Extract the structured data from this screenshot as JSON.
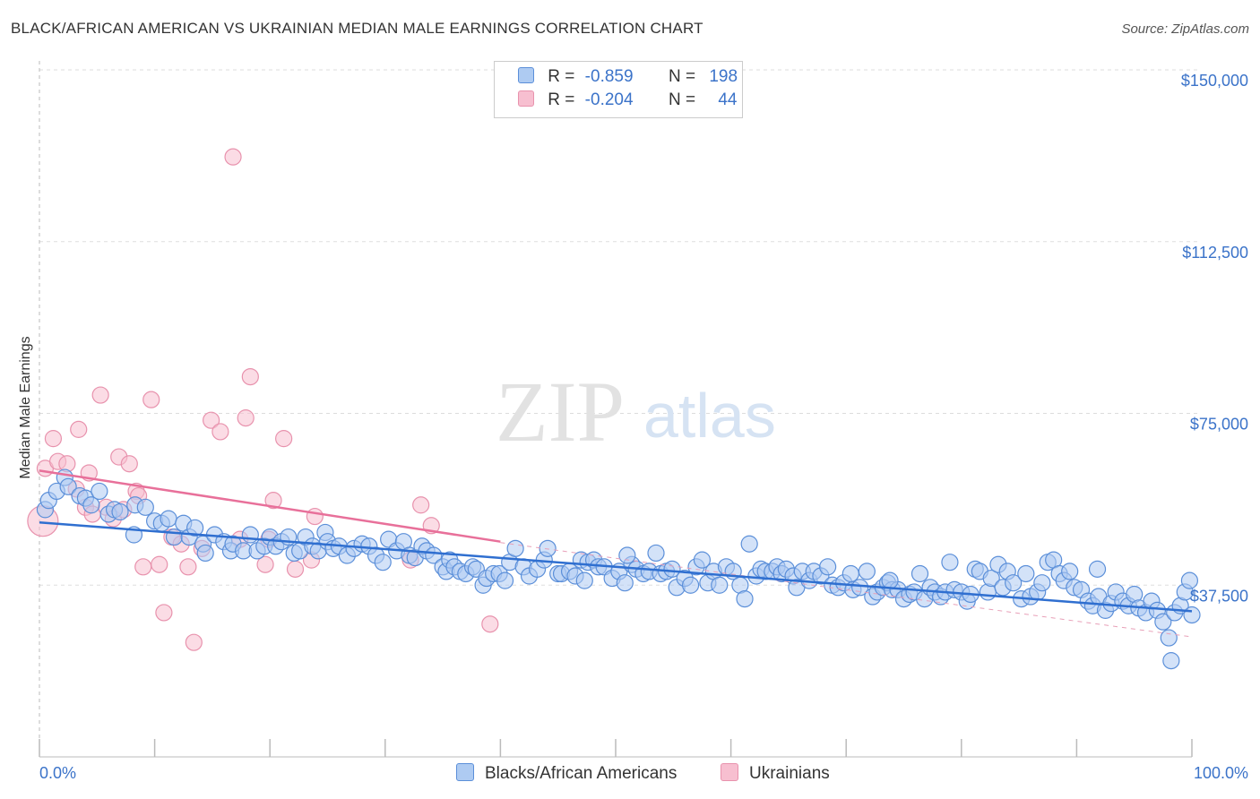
{
  "header": {
    "title": "BLACK/AFRICAN AMERICAN VS UKRAINIAN MEDIAN MALE EARNINGS CORRELATION CHART",
    "source": "Source: ZipAtlas.com"
  },
  "watermark": {
    "zip": "ZIP",
    "atlas": "atlas"
  },
  "legend": {
    "rows": [
      {
        "r_label": "R =",
        "r_value": "-0.859",
        "n_label": "N =",
        "n_value": "198"
      },
      {
        "r_label": "R =",
        "r_value": "-0.204",
        "n_label": "N =",
        "n_value": "44"
      }
    ]
  },
  "colors": {
    "blue_fill": "#aecbf2",
    "blue_stroke": "#5b8fd9",
    "blue_line": "#2f6fd0",
    "pink_fill": "#f7bfd0",
    "pink_stroke": "#e892ad",
    "pink_line": "#e8709a",
    "tick_color": "#3b73c9",
    "grid": "#dddddd"
  },
  "chart_data": {
    "type": "scatter",
    "title": "BLACK/AFRICAN AMERICAN VS UKRAINIAN MEDIAN MALE EARNINGS CORRELATION CHART",
    "xlabel": "",
    "ylabel": "Median Male Earnings",
    "xlim": [
      0,
      100
    ],
    "ylim": [
      0,
      155000
    ],
    "x_tick_labels": [
      "0.0%",
      "100.0%"
    ],
    "y_ticks": [
      37500,
      75000,
      112500,
      150000
    ],
    "y_tick_labels": [
      "$37,500",
      "$75,000",
      "$112,500",
      "$150,000"
    ],
    "grid": true,
    "legend_position": "top-center",
    "series": [
      {
        "name": "Blacks/African Americans",
        "r": -0.859,
        "n": 198,
        "trend": {
          "x": [
            0,
            100
          ],
          "y": [
            51200,
            31800
          ]
        },
        "trend_extension": {
          "x": [
            40,
            100
          ],
          "y": [
            46800,
            26200
          ]
        },
        "points": [
          [
            0.5,
            54000
          ],
          [
            0.8,
            56000
          ],
          [
            1.5,
            58000
          ],
          [
            2.2,
            61000
          ],
          [
            2.5,
            59000
          ],
          [
            3.5,
            57000
          ],
          [
            4.0,
            56500
          ],
          [
            4.5,
            55000
          ],
          [
            5.2,
            58000
          ],
          [
            6.0,
            53000
          ],
          [
            6.5,
            54000
          ],
          [
            7.0,
            53500
          ],
          [
            8.2,
            48500
          ],
          [
            8.3,
            55000
          ],
          [
            9.2,
            54500
          ],
          [
            10.0,
            51500
          ],
          [
            10.6,
            51000
          ],
          [
            11.2,
            52000
          ],
          [
            11.7,
            48000
          ],
          [
            12.5,
            51000
          ],
          [
            13.0,
            48000
          ],
          [
            13.5,
            50000
          ],
          [
            14.2,
            46500
          ],
          [
            14.4,
            44500
          ],
          [
            15.2,
            48500
          ],
          [
            16.0,
            47000
          ],
          [
            16.6,
            45000
          ],
          [
            16.8,
            46500
          ],
          [
            17.7,
            45000
          ],
          [
            18.3,
            48500
          ],
          [
            18.9,
            45000
          ],
          [
            19.5,
            46000
          ],
          [
            20.0,
            48000
          ],
          [
            20.5,
            46000
          ],
          [
            21.0,
            47000
          ],
          [
            21.6,
            48000
          ],
          [
            22.1,
            44500
          ],
          [
            22.6,
            45000
          ],
          [
            23.1,
            48000
          ],
          [
            23.7,
            46000
          ],
          [
            24.2,
            45000
          ],
          [
            24.8,
            49000
          ],
          [
            25.0,
            47000
          ],
          [
            25.5,
            45500
          ],
          [
            26.0,
            46000
          ],
          [
            26.7,
            44000
          ],
          [
            27.3,
            45500
          ],
          [
            28.0,
            46500
          ],
          [
            28.6,
            46000
          ],
          [
            29.2,
            44000
          ],
          [
            29.8,
            42500
          ],
          [
            30.3,
            47500
          ],
          [
            31.0,
            45000
          ],
          [
            31.6,
            47000
          ],
          [
            32.1,
            44000
          ],
          [
            32.6,
            43500
          ],
          [
            33.2,
            46000
          ],
          [
            33.6,
            45000
          ],
          [
            34.2,
            44000
          ],
          [
            35.0,
            41500
          ],
          [
            35.3,
            40500
          ],
          [
            35.6,
            43000
          ],
          [
            36.0,
            41500
          ],
          [
            36.5,
            40500
          ],
          [
            37.0,
            40000
          ],
          [
            37.6,
            41500
          ],
          [
            37.9,
            41000
          ],
          [
            38.5,
            37500
          ],
          [
            38.8,
            39000
          ],
          [
            39.4,
            40000
          ],
          [
            39.9,
            40000
          ],
          [
            40.4,
            38500
          ],
          [
            40.8,
            42500
          ],
          [
            41.3,
            45500
          ],
          [
            42.0,
            41500
          ],
          [
            42.5,
            39500
          ],
          [
            43.2,
            41000
          ],
          [
            43.8,
            43000
          ],
          [
            44.1,
            45500
          ],
          [
            45.0,
            40000
          ],
          [
            45.3,
            40000
          ],
          [
            46.0,
            40500
          ],
          [
            46.5,
            39500
          ],
          [
            47.0,
            43000
          ],
          [
            47.6,
            42500
          ],
          [
            48.1,
            43000
          ],
          [
            48.5,
            41500
          ],
          [
            49.0,
            41500
          ],
          [
            49.7,
            39000
          ],
          [
            50.3,
            40500
          ],
          [
            50.8,
            38000
          ],
          [
            51.4,
            42000
          ],
          [
            51.8,
            41000
          ],
          [
            52.4,
            40000
          ],
          [
            52.9,
            40500
          ],
          [
            53.5,
            44500
          ],
          [
            53.9,
            40000
          ],
          [
            54.4,
            40500
          ],
          [
            54.9,
            41000
          ],
          [
            55.3,
            37000
          ],
          [
            56.0,
            39000
          ],
          [
            56.5,
            37500
          ],
          [
            57.0,
            41500
          ],
          [
            57.5,
            43000
          ],
          [
            58.0,
            38000
          ],
          [
            58.5,
            40500
          ],
          [
            59.0,
            37500
          ],
          [
            59.6,
            41500
          ],
          [
            60.2,
            40500
          ],
          [
            60.8,
            37500
          ],
          [
            61.2,
            34500
          ],
          [
            61.6,
            46500
          ],
          [
            62.2,
            39500
          ],
          [
            62.6,
            41000
          ],
          [
            63.0,
            40500
          ],
          [
            63.6,
            40500
          ],
          [
            64.0,
            41500
          ],
          [
            64.4,
            40000
          ],
          [
            64.8,
            41000
          ],
          [
            65.4,
            39500
          ],
          [
            65.7,
            37000
          ],
          [
            66.2,
            40500
          ],
          [
            66.8,
            38500
          ],
          [
            67.2,
            40500
          ],
          [
            67.8,
            39500
          ],
          [
            68.4,
            41500
          ],
          [
            68.8,
            37500
          ],
          [
            69.3,
            37000
          ],
          [
            69.8,
            38000
          ],
          [
            70.4,
            40000
          ],
          [
            70.6,
            36500
          ],
          [
            71.2,
            37000
          ],
          [
            71.8,
            40500
          ],
          [
            72.3,
            35000
          ],
          [
            72.7,
            36000
          ],
          [
            73.2,
            37000
          ],
          [
            73.6,
            38000
          ],
          [
            74.0,
            36500
          ],
          [
            74.5,
            36500
          ],
          [
            75.0,
            34500
          ],
          [
            75.5,
            35500
          ],
          [
            75.9,
            36000
          ],
          [
            76.4,
            40000
          ],
          [
            76.8,
            34500
          ],
          [
            77.3,
            37000
          ],
          [
            77.7,
            36000
          ],
          [
            78.2,
            35000
          ],
          [
            78.6,
            36000
          ],
          [
            79.0,
            42500
          ],
          [
            79.4,
            36500
          ],
          [
            80.0,
            36000
          ],
          [
            80.5,
            34000
          ],
          [
            80.8,
            35500
          ],
          [
            81.2,
            41000
          ],
          [
            81.6,
            40500
          ],
          [
            82.3,
            36000
          ],
          [
            82.6,
            39000
          ],
          [
            83.2,
            42000
          ],
          [
            83.6,
            37000
          ],
          [
            84.0,
            40500
          ],
          [
            84.5,
            38000
          ],
          [
            85.2,
            34500
          ],
          [
            85.6,
            40000
          ],
          [
            86.0,
            35000
          ],
          [
            86.6,
            36000
          ],
          [
            87.0,
            38000
          ],
          [
            87.5,
            42500
          ],
          [
            88.0,
            43000
          ],
          [
            88.5,
            40000
          ],
          [
            88.9,
            38500
          ],
          [
            89.4,
            40500
          ],
          [
            89.8,
            37000
          ],
          [
            90.4,
            36500
          ],
          [
            91.0,
            34000
          ],
          [
            91.4,
            33000
          ],
          [
            91.9,
            35000
          ],
          [
            92.5,
            32000
          ],
          [
            93.0,
            33500
          ],
          [
            93.4,
            36000
          ],
          [
            94.0,
            34000
          ],
          [
            94.5,
            33000
          ],
          [
            95.0,
            35500
          ],
          [
            95.4,
            32500
          ],
          [
            96.0,
            31500
          ],
          [
            96.5,
            34000
          ],
          [
            97.0,
            32000
          ],
          [
            97.5,
            29500
          ],
          [
            98.0,
            26000
          ],
          [
            98.5,
            31500
          ],
          [
            99.0,
            33000
          ],
          [
            99.4,
            36000
          ],
          [
            99.8,
            38500
          ],
          [
            100.0,
            31000
          ],
          [
            98.2,
            21000
          ],
          [
            91.8,
            41000
          ],
          [
            73.8,
            38500
          ],
          [
            51.0,
            44000
          ],
          [
            47.3,
            38500
          ]
        ]
      },
      {
        "name": "Ukrainians",
        "r": -0.204,
        "n": 44,
        "trend": {
          "x": [
            0,
            40
          ],
          "y": [
            62500,
            47000
          ]
        },
        "points": [
          [
            0.3,
            51500
          ],
          [
            0.5,
            63000
          ],
          [
            1.2,
            69500
          ],
          [
            1.6,
            64500
          ],
          [
            2.4,
            64000
          ],
          [
            3.2,
            58500
          ],
          [
            3.4,
            71500
          ],
          [
            4.0,
            54500
          ],
          [
            4.3,
            62000
          ],
          [
            4.6,
            53000
          ],
          [
            5.3,
            79000
          ],
          [
            5.8,
            54500
          ],
          [
            6.4,
            52000
          ],
          [
            6.9,
            65500
          ],
          [
            7.3,
            54000
          ],
          [
            7.8,
            64000
          ],
          [
            8.4,
            58000
          ],
          [
            8.6,
            57000
          ],
          [
            9.0,
            41500
          ],
          [
            9.7,
            78000
          ],
          [
            10.4,
            42000
          ],
          [
            10.8,
            31500
          ],
          [
            11.5,
            48000
          ],
          [
            12.3,
            46500
          ],
          [
            12.9,
            41500
          ],
          [
            13.4,
            25000
          ],
          [
            14.1,
            45500
          ],
          [
            14.9,
            73500
          ],
          [
            15.7,
            71000
          ],
          [
            16.8,
            131000
          ],
          [
            17.4,
            47500
          ],
          [
            17.9,
            74000
          ],
          [
            18.3,
            83000
          ],
          [
            19.6,
            42000
          ],
          [
            19.9,
            47500
          ],
          [
            20.3,
            56000
          ],
          [
            21.2,
            69500
          ],
          [
            22.2,
            41000
          ],
          [
            23.6,
            43000
          ],
          [
            23.9,
            52500
          ],
          [
            32.2,
            43000
          ],
          [
            33.1,
            55000
          ],
          [
            34.0,
            50500
          ],
          [
            39.1,
            29000
          ]
        ]
      }
    ]
  },
  "bottom_legend": {
    "items": [
      {
        "label": "Blacks/African Americans"
      },
      {
        "label": "Ukrainians"
      }
    ]
  }
}
